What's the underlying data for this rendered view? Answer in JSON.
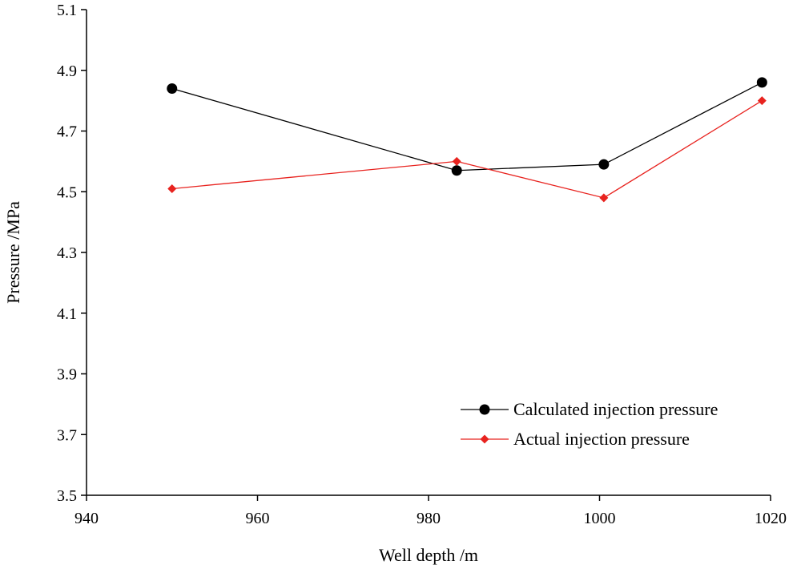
{
  "chart_data": {
    "type": "line",
    "title": "",
    "xlabel": "Well depth /m",
    "ylabel": "Pressure /MPa",
    "xlim": [
      940,
      1020
    ],
    "ylim": [
      3.5,
      5.1
    ],
    "xticks": [
      "940",
      "960",
      "980",
      "1000",
      "1020"
    ],
    "yticks": [
      "3.5",
      "3.7",
      "3.9",
      "4.1",
      "4.3",
      "4.5",
      "4.7",
      "4.9",
      "5.1"
    ],
    "grid": false,
    "legend_position": "bottom-right",
    "series": [
      {
        "name": "Calculated injection pressure",
        "color": "#000000",
        "marker": "circle",
        "x": [
          950,
          983.3,
          1000.5,
          1019
        ],
        "y": [
          4.84,
          4.57,
          4.59,
          4.86
        ]
      },
      {
        "name": "Actual injection pressure",
        "color": "#e8231f",
        "marker": "diamond",
        "x": [
          950,
          983.3,
          1000.5,
          1019
        ],
        "y": [
          4.51,
          4.6,
          4.48,
          4.8
        ]
      }
    ]
  }
}
